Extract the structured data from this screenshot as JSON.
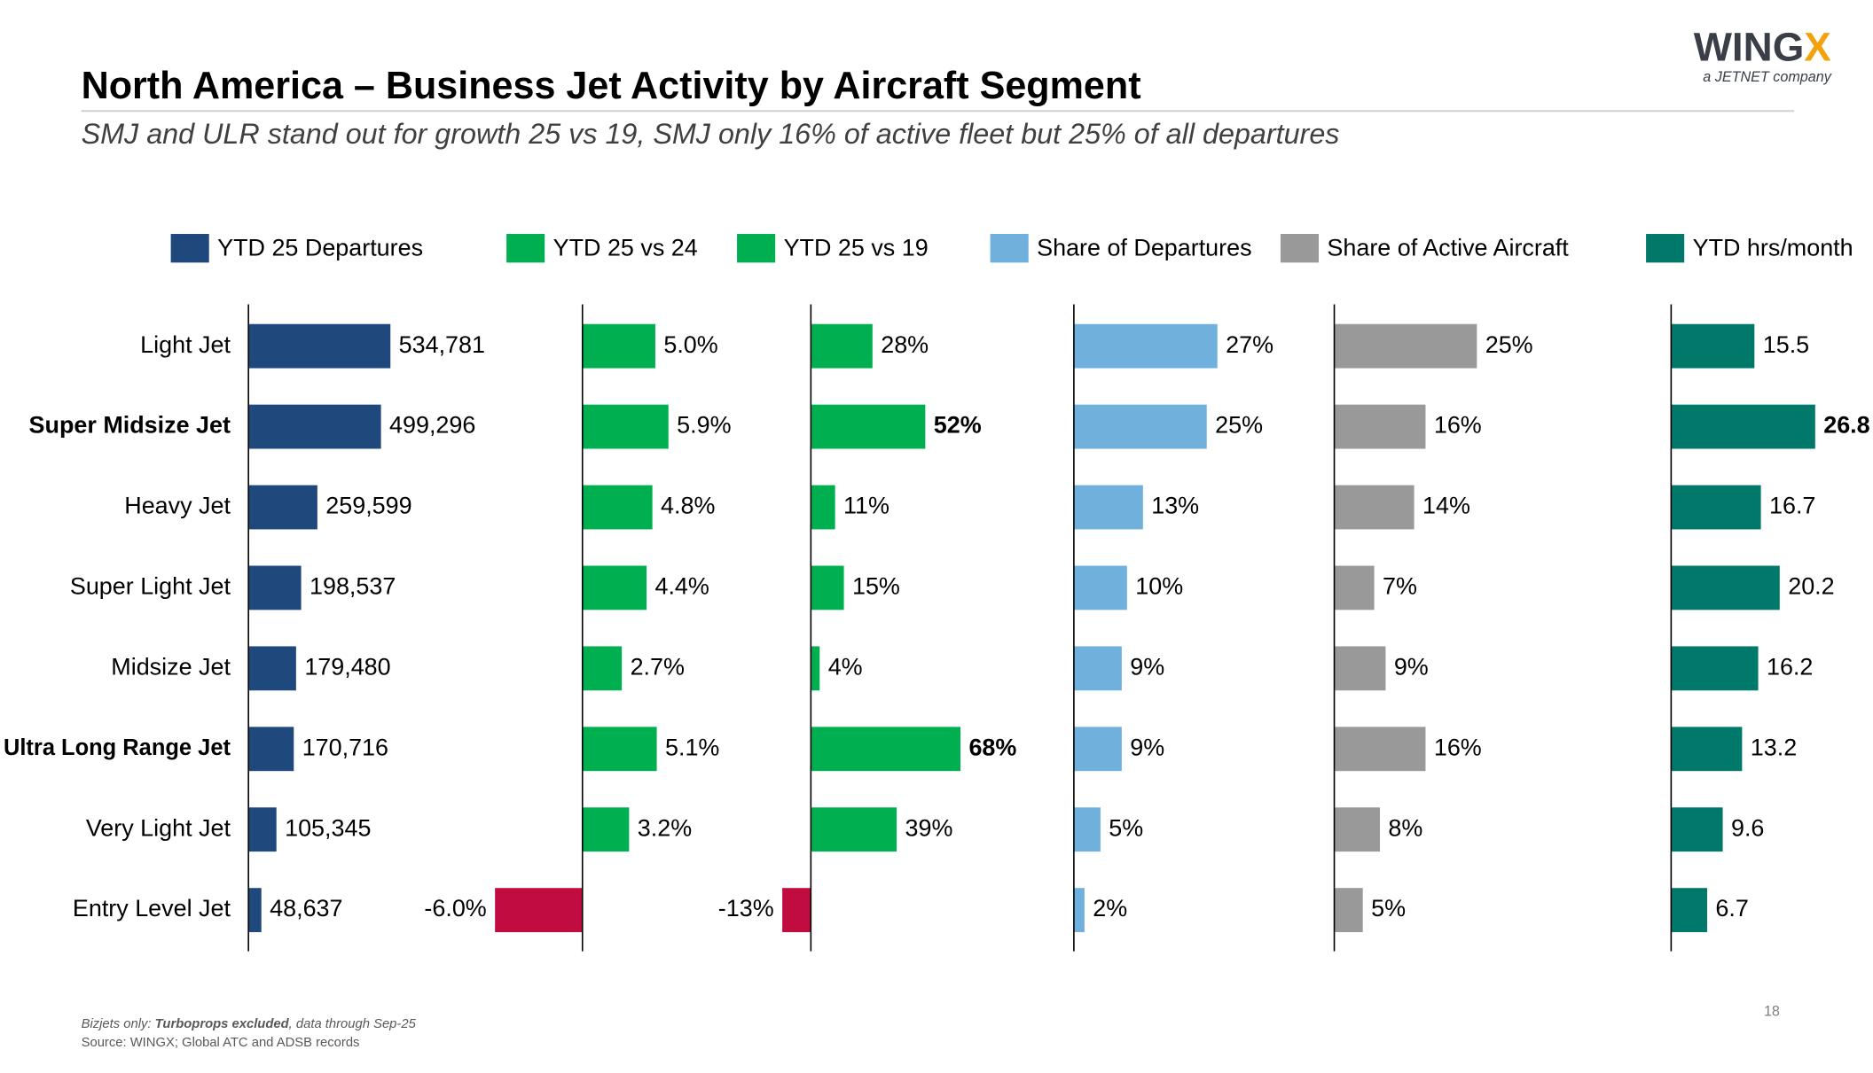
{
  "header": {
    "title": "North America – Business Jet Activity by Aircraft Segment",
    "subtitle": "SMJ and ULR stand out for growth 25 vs 19, SMJ only 16% of active fleet but 25% of all departures",
    "logo": {
      "name": "WING",
      "accent": "X",
      "tagline": "a JETNET company"
    }
  },
  "chart_data": {
    "type": "bar",
    "orientation": "horizontal",
    "categories": [
      "Light Jet",
      "Super Midsize Jet",
      "Heavy Jet",
      "Super Light Jet",
      "Midsize Jet",
      "Ultra Long Range Jet",
      "Very Light Jet",
      "Entry Level Jet"
    ],
    "series": [
      {
        "name": "YTD 25 Departures",
        "color": "#1f497d",
        "xlim": [
          0,
          900000
        ],
        "values": [
          534781,
          499296,
          259599,
          198537,
          179480,
          170716,
          105345,
          48637
        ],
        "value_labels": [
          "534,781",
          "499,296",
          "259,599",
          "198,537",
          "179,480",
          "170,716",
          "105,345",
          "48,637"
        ]
      },
      {
        "name": "YTD 25 vs 24",
        "color": "#00b050",
        "negative_color": "#c00c3f",
        "xlim": [
          -8,
          12
        ],
        "values": [
          5.0,
          5.9,
          4.8,
          4.4,
          2.7,
          5.1,
          3.2,
          -6.0
        ],
        "value_labels": [
          "5.0%",
          "5.9%",
          "4.8%",
          "4.4%",
          "2.7%",
          "5.1%",
          "3.2%",
          "-6.0%"
        ]
      },
      {
        "name": "YTD 25 vs 19",
        "color": "#00b050",
        "negative_color": "#c00c3f",
        "xlim": [
          -20,
          100
        ],
        "values": [
          28,
          52,
          11,
          15,
          4,
          68,
          39,
          -13
        ],
        "value_labels": [
          "28%",
          "52%",
          "11%",
          "15%",
          "4%",
          "68%",
          "39%",
          "-13%"
        ]
      },
      {
        "name": "Share of Departures",
        "color": "#6fb1dc",
        "xlim": [
          0,
          40
        ],
        "values": [
          27,
          25,
          13,
          10,
          9,
          9,
          5,
          2
        ],
        "value_labels": [
          "27%",
          "25%",
          "13%",
          "10%",
          "9%",
          "9%",
          "5%",
          "2%"
        ]
      },
      {
        "name": "Share of Active Aircraft",
        "color": "#999999",
        "xlim": [
          0,
          40
        ],
        "values": [
          25,
          16,
          14,
          7,
          9,
          16,
          8,
          5
        ],
        "value_labels": [
          "25%",
          "16%",
          "14%",
          "7%",
          "9%",
          "16%",
          "8%",
          "5%"
        ]
      },
      {
        "name": "YTD hrs/month",
        "color": "#00796b",
        "xlim": [
          0,
          30
        ],
        "values": [
          15.5,
          26.8,
          16.7,
          20.2,
          16.2,
          13.2,
          9.6,
          6.7
        ]
      }
    ]
  },
  "footer": {
    "note": {
      "prefix": "Bizjets only: ",
      "emphasis": "Turboprops excluded",
      "suffix": ", data through Sep-25"
    },
    "source": "Source: WINGX; Global ATC and ADSB records",
    "page_number": "18"
  }
}
